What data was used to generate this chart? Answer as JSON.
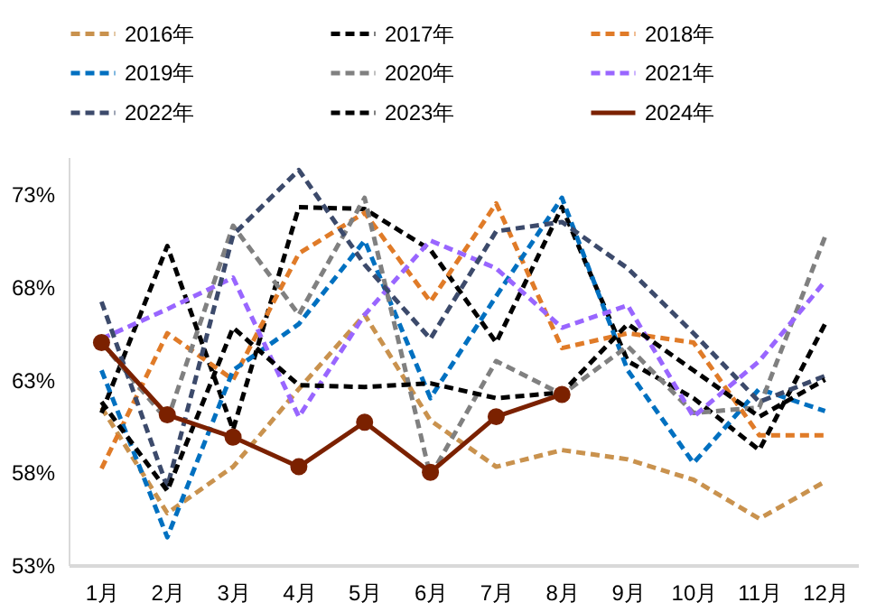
{
  "chart_data": {
    "type": "line",
    "categories": [
      "1月",
      "2月",
      "3月",
      "4月",
      "5月",
      "6月",
      "7月",
      "8月",
      "9月",
      "10月",
      "11月",
      "12月"
    ],
    "ylim": [
      53,
      75
    ],
    "yticks": [
      {
        "value": 53,
        "label": "53%"
      },
      {
        "value": 58,
        "label": "58%"
      },
      {
        "value": 63,
        "label": "63%"
      },
      {
        "value": 68,
        "label": "68%"
      },
      {
        "value": 73,
        "label": "73%"
      }
    ],
    "grid": false,
    "legend": "top",
    "marker": "none",
    "series": [
      {
        "name": "2016年",
        "color": "#c9924e",
        "line_style": "dashed",
        "values": [
          61.5,
          55.8,
          58.3,
          62.5,
          66.5,
          60.8,
          58.3,
          59.2,
          58.7,
          57.6,
          55.5,
          57.5
        ]
      },
      {
        "name": "2017年",
        "color": "#000000",
        "line_style": "dashed",
        "values": [
          61.2,
          70.2,
          60.3,
          72.3,
          72.2,
          70.0,
          65.0,
          72.3,
          64.0,
          62.0,
          59.2,
          66.0
        ]
      },
      {
        "name": "2018年",
        "color": "#e07b28",
        "line_style": "dashed",
        "values": [
          58.2,
          65.5,
          63.0,
          69.8,
          72.0,
          67.2,
          72.5,
          64.7,
          65.5,
          65.0,
          60.0,
          60.0
        ]
      },
      {
        "name": "2019年",
        "color": "#0070c0",
        "line_style": "dashed",
        "values": [
          63.5,
          54.5,
          63.5,
          66.0,
          70.5,
          62.0,
          67.5,
          72.8,
          63.5,
          58.5,
          62.5,
          61.3
        ]
      },
      {
        "name": "2020年",
        "color": "#808080",
        "line_style": "dashed",
        "values": [
          65.0,
          60.8,
          71.3,
          66.5,
          72.8,
          57.8,
          64.0,
          62.2,
          64.8,
          61.2,
          61.5,
          70.7
        ]
      },
      {
        "name": "2021年",
        "color": "#9966ff",
        "line_style": "dashed",
        "values": [
          65.2,
          66.8,
          68.5,
          61.0,
          66.5,
          70.5,
          69.0,
          65.8,
          67.0,
          61.0,
          64.0,
          68.3
        ]
      },
      {
        "name": "2022年",
        "color": "#3c4a6b",
        "line_style": "dashed",
        "values": [
          67.2,
          57.2,
          70.8,
          74.3,
          69.2,
          65.2,
          71.0,
          71.5,
          69.0,
          65.5,
          61.8,
          63.2
        ]
      },
      {
        "name": "2023年",
        "color": "#000000",
        "line_style": "dashed",
        "values": [
          61.8,
          57.0,
          65.8,
          62.7,
          62.6,
          62.8,
          62.0,
          62.3,
          66.0,
          63.5,
          61.0,
          63.0
        ]
      },
      {
        "name": "2024年",
        "color": "#7b2100",
        "line_style": "solid",
        "marker": "circle",
        "values": [
          65.0,
          61.1,
          59.9,
          58.3,
          60.7,
          58.0,
          61.0,
          62.2,
          null,
          null,
          null,
          null
        ]
      }
    ]
  }
}
